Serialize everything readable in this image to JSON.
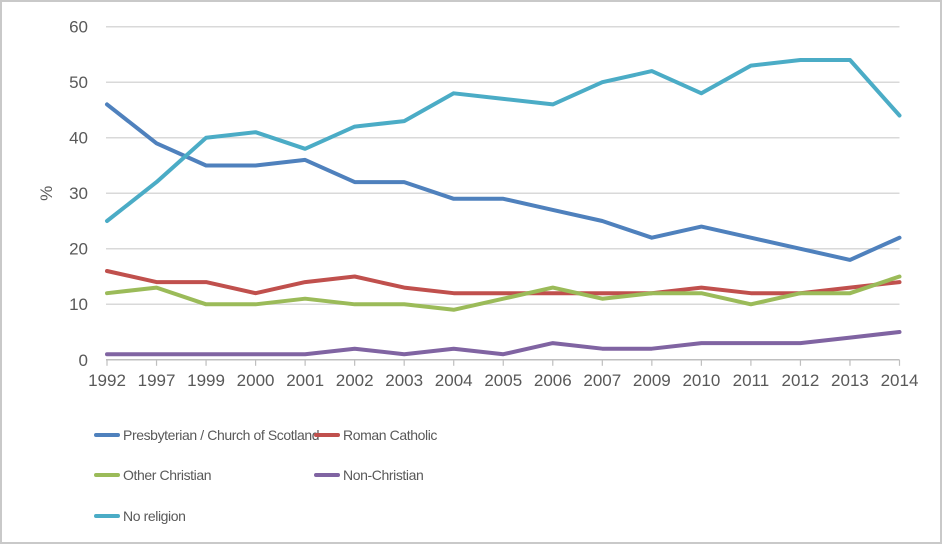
{
  "window": {
    "background": "#FFFFFF",
    "border_color": "#C9C9C9"
  },
  "chart_data": {
    "type": "line",
    "title": "",
    "xlabel": "",
    "ylabel": "%",
    "ylim": [
      0,
      60
    ],
    "yticks": [
      0,
      10,
      20,
      30,
      40,
      50,
      60
    ],
    "grid": true,
    "legend_position": "bottom-left",
    "categories": [
      "1992",
      "1997",
      "1999",
      "2000",
      "2001",
      "2002",
      "2003",
      "2004",
      "2005",
      "2006",
      "2007",
      "2009",
      "2010",
      "2011",
      "2012",
      "2013",
      "2014"
    ],
    "series": [
      {
        "name": "Presbyterian / Church of Scotland",
        "color": "#4F81BD",
        "values": [
          46,
          39,
          35,
          35,
          36,
          32,
          32,
          29,
          29,
          27,
          25,
          22,
          24,
          22,
          20,
          18,
          22
        ]
      },
      {
        "name": "Roman Catholic",
        "color": "#C0504D",
        "values": [
          16,
          14,
          14,
          12,
          14,
          15,
          13,
          12,
          12,
          12,
          12,
          12,
          13,
          12,
          12,
          13,
          14
        ]
      },
      {
        "name": "Other Christian",
        "color": "#9BBB59",
        "values": [
          12,
          13,
          10,
          10,
          11,
          10,
          10,
          9,
          11,
          13,
          11,
          12,
          12,
          10,
          12,
          12,
          15
        ]
      },
      {
        "name": "Non-Christian",
        "color": "#8064A2",
        "values": [
          1,
          1,
          1,
          1,
          1,
          2,
          1,
          2,
          1,
          3,
          2,
          2,
          3,
          3,
          3,
          4,
          5
        ]
      },
      {
        "name": "No religion",
        "color": "#4BACC6",
        "values": [
          25,
          32,
          40,
          41,
          38,
          42,
          43,
          48,
          47,
          46,
          50,
          52,
          48,
          53,
          54,
          54,
          44
        ]
      }
    ],
    "style": {
      "gridline_color": "#D9D9D9",
      "axis_color": "#BFBFBF",
      "text_color": "#595959",
      "line_width": 4
    }
  }
}
